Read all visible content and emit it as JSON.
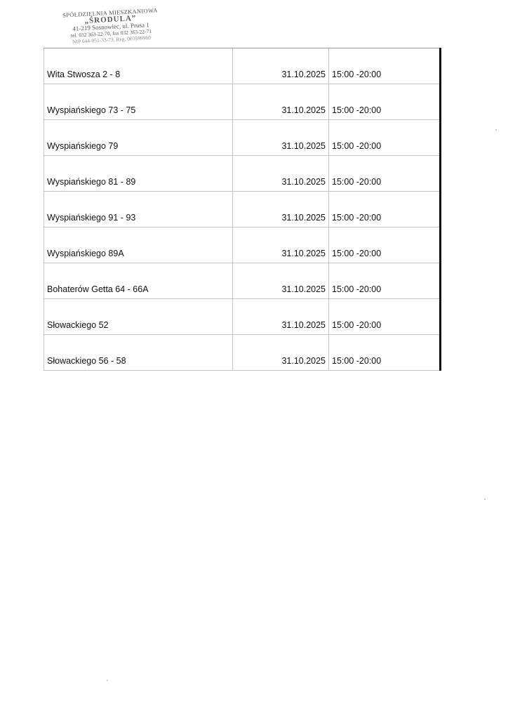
{
  "stamp": {
    "line1": "SPÓŁDZIELNIA MIESZKANIOWA",
    "line2": "„ŚRODULA”",
    "line3": "41-219 Sosnowiec, ul. Prusa 1",
    "line4": "tel. 032 363-22-70, fax 032 363-22-71",
    "line5": "NIP 644-051-33-73, Reg. 003599960"
  },
  "rows": [
    {
      "address": "Wita Stwosza 2 - 8",
      "date": "31.10.2025",
      "time": "15:00 -20:00"
    },
    {
      "address": "Wyspiańskiego 73 - 75",
      "date": "31.10.2025",
      "time": "15:00 -20:00"
    },
    {
      "address": "Wyspiańskiego 79",
      "date": "31.10.2025",
      "time": "15:00 -20:00"
    },
    {
      "address": "Wyspiańskiego 81 - 89",
      "date": "31.10.2025",
      "time": "15:00 -20:00"
    },
    {
      "address": "Wyspiańskiego 91 - 93",
      "date": "31.10.2025",
      "time": "15:00 -20:00"
    },
    {
      "address": "Wyspiańskiego 89A",
      "date": "31.10.2025",
      "time": "15:00 -20:00"
    },
    {
      "address": "Bohaterów Getta 64 - 66A",
      "date": "31.10.2025",
      "time": "15:00 -20:00"
    },
    {
      "address": "Słowackiego 52",
      "date": "31.10.2025",
      "time": "15:00 -20:00"
    },
    {
      "address": "Słowackiego 56 - 58",
      "date": "31.10.2025",
      "time": "15:00 -20:00"
    }
  ]
}
